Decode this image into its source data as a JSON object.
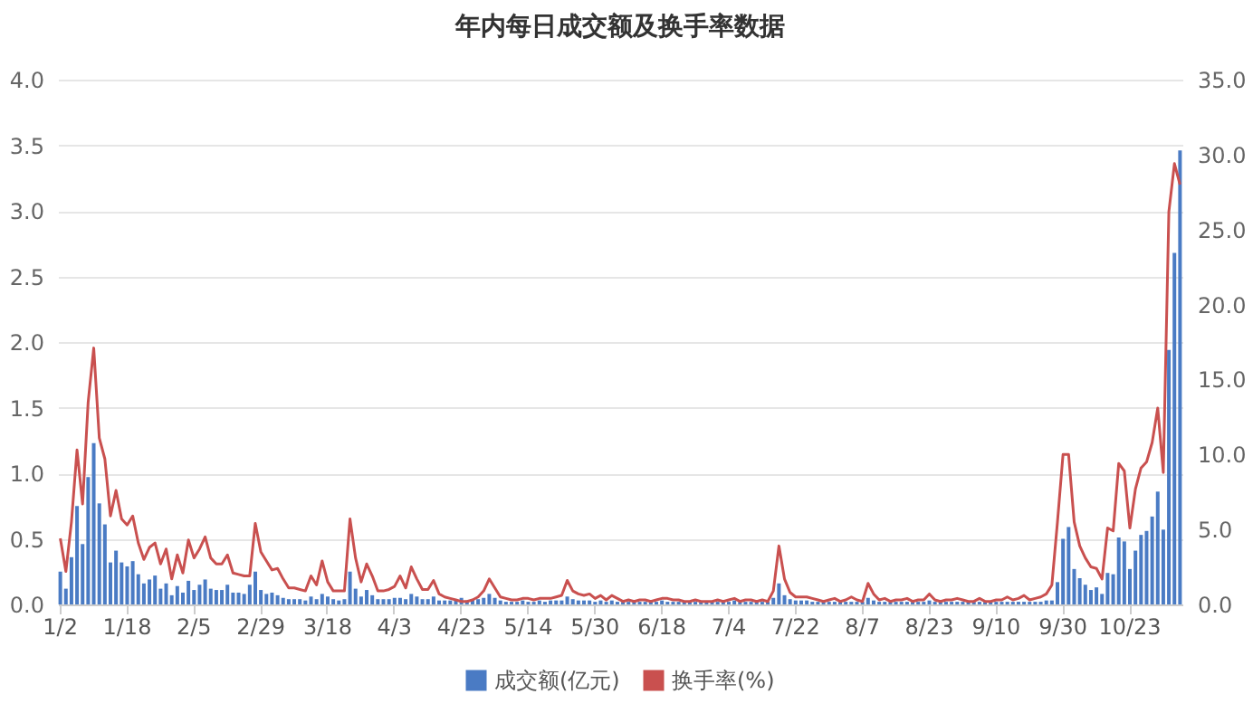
{
  "chart_data": {
    "type": "bar",
    "title": "年内每日成交额及换手率数据",
    "categories": [
      "1/2",
      null,
      null,
      null,
      null,
      null,
      null,
      null,
      null,
      null,
      null,
      null,
      "1/18",
      null,
      null,
      null,
      null,
      null,
      null,
      null,
      null,
      null,
      null,
      null,
      "2/5",
      null,
      null,
      null,
      null,
      null,
      null,
      null,
      null,
      null,
      null,
      null,
      "2/29",
      null,
      null,
      null,
      null,
      null,
      null,
      null,
      null,
      null,
      null,
      null,
      "3/18",
      null,
      null,
      null,
      null,
      null,
      null,
      null,
      null,
      null,
      null,
      null,
      "4/3",
      null,
      null,
      null,
      null,
      null,
      null,
      null,
      null,
      null,
      null,
      null,
      "4/23",
      null,
      null,
      null,
      null,
      null,
      null,
      null,
      null,
      null,
      null,
      null,
      "5/14",
      null,
      null,
      null,
      null,
      null,
      null,
      null,
      null,
      null,
      null,
      null,
      "5/30",
      null,
      null,
      null,
      null,
      null,
      null,
      null,
      null,
      null,
      null,
      null,
      "6/18",
      null,
      null,
      null,
      null,
      null,
      null,
      null,
      null,
      null,
      null,
      null,
      "7/4",
      null,
      null,
      null,
      null,
      null,
      null,
      null,
      null,
      null,
      null,
      null,
      "7/22",
      null,
      null,
      null,
      null,
      null,
      null,
      null,
      null,
      null,
      null,
      null,
      "8/7",
      null,
      null,
      null,
      null,
      null,
      null,
      null,
      null,
      null,
      null,
      null,
      "8/23",
      null,
      null,
      null,
      null,
      null,
      null,
      null,
      null,
      null,
      null,
      null,
      "9/10",
      null,
      null,
      null,
      null,
      null,
      null,
      null,
      null,
      null,
      null,
      null,
      "9/30",
      null,
      null,
      null,
      null,
      null,
      null,
      null,
      null,
      null,
      null,
      null,
      "10/23",
      null,
      null,
      null,
      null,
      null,
      null,
      null,
      null,
      null
    ],
    "series": [
      {
        "name": "成交额(亿元)",
        "color": "#4a7bc4",
        "values": [
          0.25,
          0.12,
          0.36,
          0.75,
          0.46,
          0.97,
          1.23,
          0.77,
          0.61,
          0.32,
          0.41,
          0.32,
          0.29,
          0.33,
          0.23,
          0.16,
          0.19,
          0.22,
          0.12,
          0.16,
          0.07,
          0.14,
          0.09,
          0.18,
          0.11,
          0.15,
          0.19,
          0.12,
          0.11,
          0.11,
          0.15,
          0.09,
          0.09,
          0.08,
          0.15,
          0.25,
          0.11,
          0.08,
          0.09,
          0.07,
          0.05,
          0.04,
          0.04,
          0.04,
          0.03,
          0.06,
          0.04,
          0.08,
          0.06,
          0.04,
          0.03,
          0.04,
          0.25,
          0.12,
          0.06,
          0.11,
          0.07,
          0.04,
          0.04,
          0.04,
          0.05,
          0.05,
          0.04,
          0.08,
          0.06,
          0.04,
          0.04,
          0.06,
          0.03,
          0.03,
          0.03,
          0.04,
          0.05,
          0.03,
          0.04,
          0.04,
          0.05,
          0.08,
          0.05,
          0.03,
          0.02,
          0.02,
          0.02,
          0.03,
          0.02,
          0.02,
          0.03,
          0.02,
          0.03,
          0.03,
          0.03,
          0.06,
          0.04,
          0.03,
          0.03,
          0.03,
          0.02,
          0.03,
          0.02,
          0.03,
          0.02,
          0.02,
          0.02,
          0.02,
          0.02,
          0.02,
          0.02,
          0.02,
          0.03,
          0.02,
          0.02,
          0.02,
          0.02,
          0.02,
          0.02,
          0.02,
          0.02,
          0.02,
          0.02,
          0.02,
          0.02,
          0.03,
          0.02,
          0.02,
          0.02,
          0.02,
          0.02,
          0.02,
          0.05,
          0.16,
          0.07,
          0.04,
          0.03,
          0.03,
          0.03,
          0.02,
          0.02,
          0.02,
          0.02,
          0.02,
          0.02,
          0.02,
          0.02,
          0.02,
          0.02,
          0.05,
          0.03,
          0.02,
          0.02,
          0.02,
          0.02,
          0.02,
          0.02,
          0.02,
          0.02,
          0.02,
          0.03,
          0.02,
          0.02,
          0.02,
          0.02,
          0.02,
          0.02,
          0.02,
          0.02,
          0.02,
          0.02,
          0.02,
          0.02,
          0.02,
          0.02,
          0.02,
          0.02,
          0.02,
          0.02,
          0.02,
          0.02,
          0.03,
          0.03,
          0.17,
          0.5,
          0.59,
          0.27,
          0.2,
          0.15,
          0.11,
          0.13,
          0.08,
          0.24,
          0.23,
          0.51,
          0.48,
          0.27,
          0.41,
          0.53,
          0.56,
          0.67,
          0.86,
          0.57,
          1.94,
          2.68,
          3.46
        ]
      },
      {
        "name": "换手率(%)",
        "type": "line",
        "axis": "y2",
        "color": "#c9504f",
        "values": [
          4.4,
          2.2,
          5.5,
          10.3,
          6.7,
          13.5,
          17.1,
          11.1,
          9.7,
          5.9,
          7.6,
          5.7,
          5.3,
          5.9,
          4.1,
          3.0,
          3.8,
          4.1,
          2.7,
          3.7,
          1.7,
          3.3,
          2.1,
          4.3,
          3.1,
          3.7,
          4.5,
          3.1,
          2.7,
          2.7,
          3.3,
          2.1,
          2.0,
          1.9,
          1.9,
          5.4,
          3.5,
          2.9,
          2.3,
          2.4,
          1.7,
          1.1,
          1.1,
          1.0,
          0.9,
          1.9,
          1.3,
          2.9,
          1.5,
          0.9,
          0.9,
          0.9,
          5.7,
          3.1,
          1.5,
          2.7,
          1.9,
          0.9,
          0.9,
          1.0,
          1.2,
          1.9,
          1.1,
          2.5,
          1.7,
          1.0,
          1.0,
          1.6,
          0.7,
          0.5,
          0.4,
          0.3,
          0.2,
          0.2,
          0.3,
          0.5,
          0.9,
          1.7,
          1.1,
          0.5,
          0.4,
          0.3,
          0.3,
          0.4,
          0.4,
          0.3,
          0.4,
          0.4,
          0.4,
          0.5,
          0.6,
          1.6,
          0.9,
          0.7,
          0.6,
          0.7,
          0.4,
          0.6,
          0.3,
          0.6,
          0.4,
          0.2,
          0.3,
          0.2,
          0.3,
          0.3,
          0.2,
          0.3,
          0.4,
          0.4,
          0.3,
          0.3,
          0.2,
          0.2,
          0.3,
          0.2,
          0.2,
          0.2,
          0.3,
          0.2,
          0.3,
          0.4,
          0.2,
          0.3,
          0.3,
          0.2,
          0.3,
          0.2,
          0.9,
          3.9,
          1.7,
          0.8,
          0.5,
          0.5,
          0.5,
          0.4,
          0.3,
          0.2,
          0.3,
          0.4,
          0.2,
          0.3,
          0.5,
          0.3,
          0.2,
          1.4,
          0.7,
          0.3,
          0.4,
          0.2,
          0.3,
          0.3,
          0.4,
          0.2,
          0.3,
          0.3,
          0.7,
          0.3,
          0.2,
          0.3,
          0.3,
          0.4,
          0.3,
          0.2,
          0.2,
          0.4,
          0.2,
          0.2,
          0.3,
          0.3,
          0.5,
          0.3,
          0.4,
          0.6,
          0.3,
          0.4,
          0.5,
          0.7,
          1.3,
          5.5,
          10.0,
          10.0,
          5.5,
          3.9,
          3.1,
          2.5,
          2.4,
          1.7,
          5.1,
          4.9,
          9.4,
          8.9,
          5.1,
          7.7,
          9.1,
          9.5,
          10.8,
          13.1,
          8.8,
          26.2,
          29.4,
          28.0
        ]
      }
    ],
    "ylim": [
      0,
      4
    ],
    "yticks": [
      {
        "value": 0,
        "label": "0.0"
      },
      {
        "value": 0.5,
        "label": "0.5"
      },
      {
        "value": 1,
        "label": "1.0"
      },
      {
        "value": 1.5,
        "label": "1.5"
      },
      {
        "value": 2,
        "label": "2.0"
      },
      {
        "value": 2.5,
        "label": "2.5"
      },
      {
        "value": 3,
        "label": "3.0"
      },
      {
        "value": 3.5,
        "label": "3.5"
      },
      {
        "value": 4,
        "label": "4.0"
      }
    ],
    "y2lim": [
      0,
      35
    ],
    "y2ticks": [
      {
        "value": 0,
        "label": "0.0"
      },
      {
        "value": 5,
        "label": "5.0"
      },
      {
        "value": 10,
        "label": "10.0"
      },
      {
        "value": 15,
        "label": "15.0"
      },
      {
        "value": 20,
        "label": "20.0"
      },
      {
        "value": 25,
        "label": "25.0"
      },
      {
        "value": 30,
        "label": "30.0"
      },
      {
        "value": 35,
        "label": "35.0"
      }
    ],
    "grid": "y",
    "legend": "bottom",
    "marker": "none",
    "line_style": "solid"
  }
}
